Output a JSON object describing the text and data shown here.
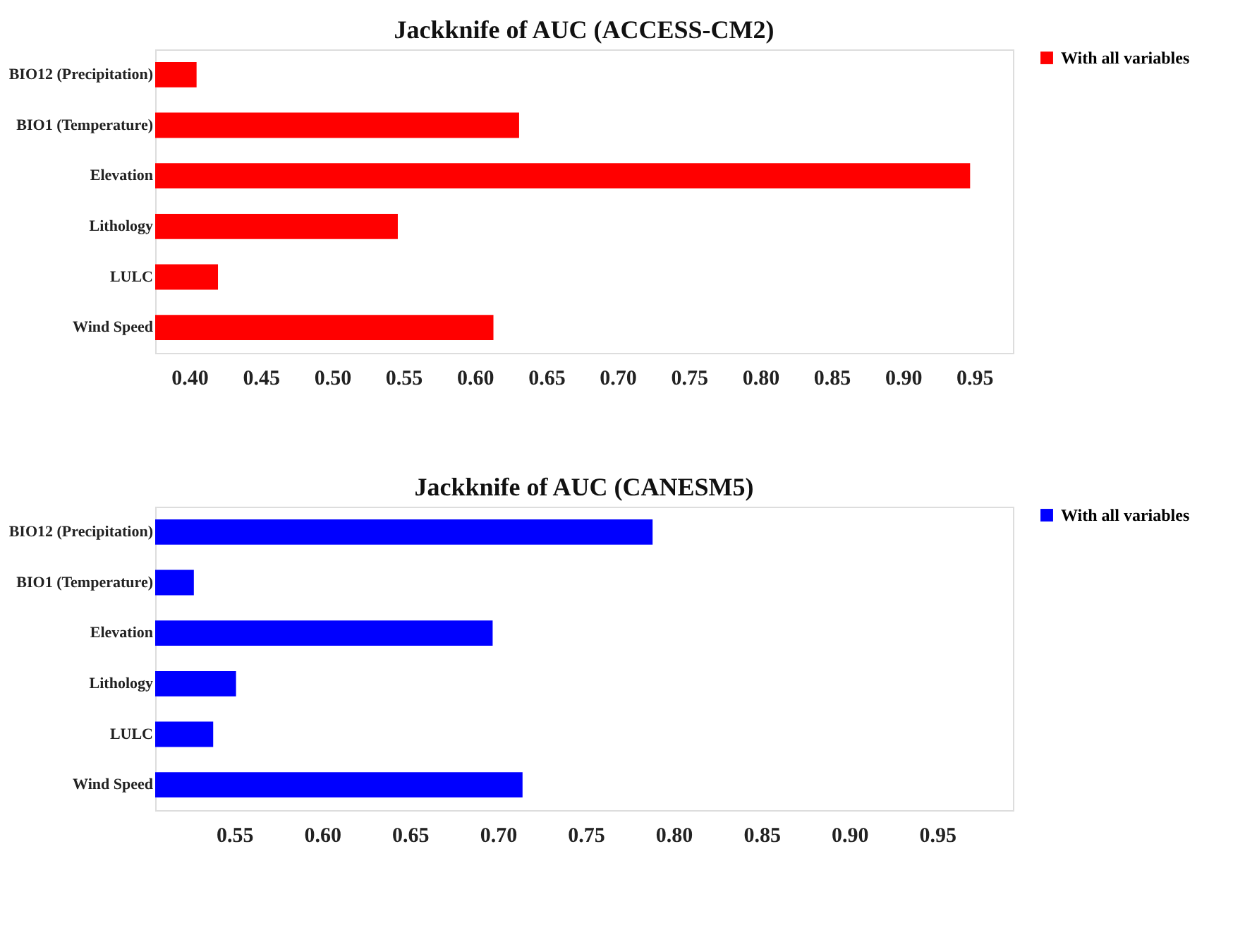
{
  "chart_data": [
    {
      "type": "bar",
      "orientation": "horizontal",
      "title": "Jackknife of AUC (ACCESS-CM2)",
      "categories": [
        "BIO12 (Precipitation)",
        "BIO1 (Temperature)",
        "Elevation",
        "Lithology",
        "LULC",
        "Wind Speed"
      ],
      "series": [
        {
          "name": "With all variables",
          "color": "#ff0000",
          "values": [
            0.405,
            0.631,
            0.947,
            0.546,
            0.42,
            0.613
          ]
        }
      ],
      "xlim": [
        0.376,
        0.977
      ],
      "xticks": [
        {
          "value": 0.4,
          "label": "0.40"
        },
        {
          "value": 0.45,
          "label": "0.45"
        },
        {
          "value": 0.5,
          "label": "0.50"
        },
        {
          "value": 0.55,
          "label": "0.55"
        },
        {
          "value": 0.6,
          "label": "0.60"
        },
        {
          "value": 0.65,
          "label": "0.65"
        },
        {
          "value": 0.7,
          "label": "0.70"
        },
        {
          "value": 0.75,
          "label": "0.75"
        },
        {
          "value": 0.8,
          "label": "0.80"
        },
        {
          "value": 0.85,
          "label": "0.85"
        },
        {
          "value": 0.9,
          "label": "0.90"
        },
        {
          "value": 0.95,
          "label": "0.95"
        }
      ],
      "grid": false,
      "legend": "top right"
    },
    {
      "type": "bar",
      "orientation": "horizontal",
      "title": "Jackknife of AUC (CANESM5)",
      "categories": [
        "BIO12 (Precipitation)",
        "BIO1 (Temperature)",
        "Elevation",
        "Lithology",
        "LULC",
        "Wind Speed"
      ],
      "series": [
        {
          "name": "With all variables",
          "color": "#0000ff",
          "values": [
            0.788,
            0.527,
            0.697,
            0.551,
            0.538,
            0.714
          ]
        }
      ],
      "xlim": [
        0.505,
        0.993
      ],
      "xticks": [
        {
          "value": 0.55,
          "label": "0.55"
        },
        {
          "value": 0.6,
          "label": "0.60"
        },
        {
          "value": 0.65,
          "label": "0.65"
        },
        {
          "value": 0.7,
          "label": "0.70"
        },
        {
          "value": 0.75,
          "label": "0.75"
        },
        {
          "value": 0.8,
          "label": "0.80"
        },
        {
          "value": 0.85,
          "label": "0.85"
        },
        {
          "value": 0.9,
          "label": "0.90"
        },
        {
          "value": 0.95,
          "label": "0.95"
        }
      ],
      "grid": false,
      "legend": "top right"
    }
  ]
}
